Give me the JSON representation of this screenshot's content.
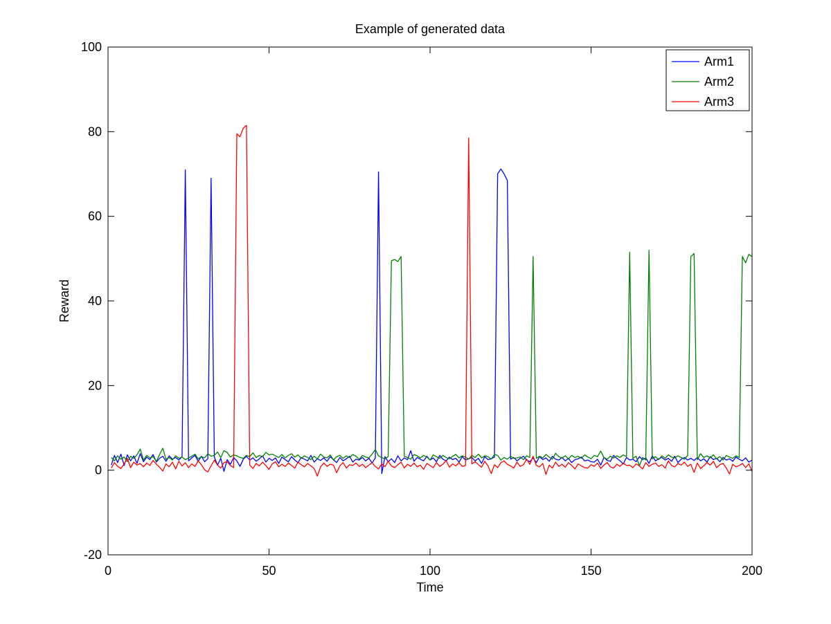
{
  "chart_data": {
    "type": "line",
    "title": "Example of generated data",
    "xlabel": "Time",
    "ylabel": "Reward",
    "xlim": [
      0,
      200
    ],
    "ylim": [
      -20,
      100
    ],
    "xticks": [
      0,
      50,
      100,
      150,
      200
    ],
    "yticks": [
      -20,
      0,
      20,
      40,
      60,
      80,
      100
    ],
    "grid": false,
    "legend_position": "top-right",
    "series": [
      {
        "name": "Arm1",
        "color": "#0000ff",
        "x": [
          1,
          2,
          3,
          4,
          5,
          6,
          7,
          8,
          9,
          10,
          11,
          12,
          13,
          14,
          15,
          16,
          17,
          18,
          19,
          20,
          21,
          22,
          23,
          24,
          25,
          26,
          27,
          28,
          29,
          30,
          31,
          32,
          33,
          34,
          35,
          36,
          37,
          38,
          39,
          40,
          41,
          42,
          43,
          44,
          45,
          46,
          47,
          48,
          49,
          50,
          51,
          52,
          53,
          54,
          55,
          56,
          57,
          58,
          59,
          60,
          61,
          62,
          63,
          64,
          65,
          66,
          67,
          68,
          69,
          70,
          71,
          72,
          73,
          74,
          75,
          76,
          77,
          78,
          79,
          80,
          81,
          82,
          83,
          84,
          85,
          86,
          87,
          88,
          89,
          90,
          91,
          92,
          93,
          94,
          95,
          96,
          97,
          98,
          99,
          100,
          101,
          102,
          103,
          104,
          105,
          106,
          107,
          108,
          109,
          110,
          111,
          112,
          113,
          114,
          115,
          116,
          117,
          118,
          119,
          120,
          121,
          122,
          123,
          124,
          125,
          126,
          127,
          128,
          129,
          130,
          131,
          132,
          133,
          134,
          135,
          136,
          137,
          138,
          139,
          140,
          141,
          142,
          143,
          144,
          145,
          146,
          147,
          148,
          149,
          150,
          151,
          152,
          153,
          154,
          155,
          156,
          157,
          158,
          159,
          160,
          161,
          162,
          163,
          164,
          165,
          166,
          167,
          168,
          169,
          170,
          171,
          172,
          173,
          174,
          175,
          176,
          177,
          178,
          179,
          180,
          181,
          182,
          183,
          184,
          185,
          186,
          187,
          188,
          189,
          190,
          191,
          192,
          193,
          194,
          195,
          196,
          197,
          198,
          199,
          200
        ],
        "y": [
          1.2,
          3.5,
          1.8,
          3.8,
          1.1,
          3.6,
          2.2,
          3.4,
          1.6,
          3.9,
          2.0,
          3.1,
          2.5,
          3.7,
          1.9,
          2.8,
          3.3,
          2.1,
          3.4,
          2.6,
          3.0,
          2.4,
          3.2,
          71.0,
          2.2,
          2.9,
          3.5,
          2.1,
          3.3,
          2.0,
          2.7,
          69.0,
          3.1,
          1.2,
          2.8,
          -0.3,
          2.5,
          1.4,
          3.0,
          2.2,
          0.9,
          2.6,
          3.3,
          2.4,
          2.9,
          2.1,
          2.7,
          3.4,
          1.9,
          2.8,
          2.3,
          2.9,
          1.6,
          3.1,
          2.5,
          2.0,
          3.2,
          2.4,
          1.8,
          3.0,
          2.6,
          2.2,
          3.5,
          1.9,
          2.7,
          2.3,
          2.9,
          2.1,
          3.2,
          2.5,
          1.8,
          3.0,
          2.2,
          2.7,
          3.3,
          1.9,
          2.6,
          2.4,
          3.0,
          2.2,
          2.8,
          1.7,
          2.9,
          70.5,
          -0.8,
          3.2,
          2.0,
          2.7,
          1.8,
          3.4,
          2.2,
          2.9,
          2.5,
          4.6,
          2.1,
          3.0,
          2.6,
          2.2,
          3.3,
          2.4,
          2.9,
          2.0,
          3.5,
          2.6,
          2.2,
          3.1,
          2.5,
          2.8,
          1.9,
          3.2,
          2.4,
          2.7,
          3.0,
          2.2,
          2.8,
          1.6,
          3.2,
          2.5,
          2.7,
          3.1,
          70.0,
          71.2,
          70.0,
          68.5,
          2.6,
          3.0,
          2.2,
          2.8,
          3.3,
          2.4,
          2.0,
          2.9,
          1.8,
          3.2,
          2.5,
          2.9,
          2.1,
          3.3,
          2.6,
          2.4,
          3.0,
          2.2,
          2.8,
          1.8,
          2.5,
          2.7,
          3.1,
          2.2,
          2.4,
          2.0,
          1.9,
          2.6,
          1.2,
          3.0,
          2.3,
          2.1,
          3.5,
          2.8,
          2.2,
          1.5,
          3.0,
          2.4,
          2.6,
          2.0,
          3.2,
          2.5,
          2.9,
          1.6,
          3.4,
          2.2,
          2.7,
          3.0,
          2.4,
          2.8,
          2.1,
          3.3,
          1.8,
          2.6,
          3.0,
          2.4,
          2.8,
          2.3,
          3.0,
          2.2,
          2.7,
          1.9,
          3.2,
          2.5,
          2.8,
          2.0,
          3.0,
          2.4,
          2.7,
          2.1,
          3.1,
          2.6,
          2.2,
          2.9,
          1.9,
          2.4
        ]
      },
      {
        "name": "Arm2",
        "color": "#007f00",
        "x": [
          1,
          2,
          3,
          4,
          5,
          6,
          7,
          8,
          9,
          10,
          11,
          12,
          13,
          14,
          15,
          16,
          17,
          18,
          19,
          20,
          21,
          22,
          23,
          24,
          25,
          26,
          27,
          28,
          29,
          30,
          31,
          32,
          33,
          34,
          35,
          36,
          37,
          38,
          39,
          40,
          41,
          42,
          43,
          44,
          45,
          46,
          47,
          48,
          49,
          50,
          51,
          52,
          53,
          54,
          55,
          56,
          57,
          58,
          59,
          60,
          61,
          62,
          63,
          64,
          65,
          66,
          67,
          68,
          69,
          70,
          71,
          72,
          73,
          74,
          75,
          76,
          77,
          78,
          79,
          80,
          81,
          82,
          83,
          84,
          85,
          86,
          87,
          88,
          89,
          90,
          91,
          92,
          93,
          94,
          95,
          96,
          97,
          98,
          99,
          100,
          101,
          102,
          103,
          104,
          105,
          106,
          107,
          108,
          109,
          110,
          111,
          112,
          113,
          114,
          115,
          116,
          117,
          118,
          119,
          120,
          121,
          122,
          123,
          124,
          125,
          126,
          127,
          128,
          129,
          130,
          131,
          132,
          133,
          134,
          135,
          136,
          137,
          138,
          139,
          140,
          141,
          142,
          143,
          144,
          145,
          146,
          147,
          148,
          149,
          150,
          151,
          152,
          153,
          154,
          155,
          156,
          157,
          158,
          159,
          160,
          161,
          162,
          163,
          164,
          165,
          166,
          167,
          168,
          169,
          170,
          171,
          172,
          173,
          174,
          175,
          176,
          177,
          178,
          179,
          180,
          181,
          182,
          183,
          184,
          185,
          186,
          187,
          188,
          189,
          190,
          191,
          192,
          193,
          194,
          195,
          196,
          197,
          198,
          199,
          200
        ],
        "y": [
          3.0,
          2.2,
          3.4,
          2.6,
          3.1,
          2.0,
          3.3,
          2.8,
          3.6,
          5.0,
          2.4,
          3.5,
          2.9,
          3.2,
          2.1,
          3.7,
          5.2,
          2.6,
          3.0,
          2.4,
          3.4,
          2.8,
          3.1,
          2.5,
          2.9,
          3.3,
          3.8,
          2.7,
          3.2,
          2.9,
          3.9,
          3.3,
          3.5,
          4.3,
          3.0,
          4.6,
          4.2,
          3.1,
          3.6,
          3.4,
          3.0,
          2.8,
          3.5,
          3.2,
          4.1,
          3.0,
          3.5,
          3.2,
          4.2,
          3.6,
          3.8,
          3.4,
          3.0,
          3.7,
          2.9,
          3.5,
          3.9,
          3.1,
          3.6,
          2.8,
          3.4,
          3.0,
          2.5,
          3.3,
          2.7,
          3.8,
          3.1,
          2.9,
          3.6,
          2.4,
          3.2,
          3.5,
          2.8,
          3.4,
          3.0,
          3.7,
          3.3,
          2.6,
          3.5,
          3.1,
          2.9,
          3.8,
          4.9,
          3.4,
          3.0,
          2.7,
          3.2,
          49.5,
          49.8,
          49.3,
          50.5,
          3.3,
          3.0,
          2.6,
          3.7,
          3.4,
          2.9,
          3.5,
          3.1,
          2.4,
          3.6,
          3.2,
          2.8,
          3.5,
          3.0,
          2.7,
          3.3,
          3.7,
          2.9,
          3.4,
          3.1,
          2.6,
          3.5,
          3.0,
          3.8,
          2.9,
          3.4,
          3.2,
          2.6,
          3.7,
          3.5,
          2.4,
          3.0,
          2.6,
          3.3,
          2.8,
          2.9,
          3.1,
          2.5,
          3.4,
          3.0,
          50.5,
          2.8,
          3.3,
          2.9,
          3.7,
          3.1,
          2.6,
          4.0,
          3.2,
          2.9,
          3.4,
          2.7,
          3.5,
          3.0,
          3.3,
          2.8,
          3.6,
          3.1,
          2.7,
          3.5,
          3.2,
          4.5,
          3.0,
          2.6,
          3.3,
          2.9,
          3.4,
          3.0,
          3.6,
          3.2,
          51.5,
          2.8,
          3.3,
          1.0,
          3.0,
          2.4,
          52.0,
          2.7,
          3.2,
          2.5,
          3.4,
          2.8,
          3.6,
          3.1,
          2.9,
          3.4,
          3.0,
          2.6,
          3.5,
          50.5,
          51.2,
          2.5,
          3.9,
          3.0,
          3.4,
          2.9,
          3.6,
          2.7,
          3.2,
          2.4,
          3.5,
          3.1,
          2.8,
          3.4,
          3.0,
          50.5,
          49.0,
          51.0,
          50.5
        ]
      },
      {
        "name": "Arm3",
        "color": "#ff0000",
        "x": [
          1,
          2,
          3,
          4,
          5,
          6,
          7,
          8,
          9,
          10,
          11,
          12,
          13,
          14,
          15,
          16,
          17,
          18,
          19,
          20,
          21,
          22,
          23,
          24,
          25,
          26,
          27,
          28,
          29,
          30,
          31,
          32,
          33,
          34,
          35,
          36,
          37,
          38,
          39,
          40,
          41,
          42,
          43,
          44,
          45,
          46,
          47,
          48,
          49,
          50,
          51,
          52,
          53,
          54,
          55,
          56,
          57,
          58,
          59,
          60,
          61,
          62,
          63,
          64,
          65,
          66,
          67,
          68,
          69,
          70,
          71,
          72,
          73,
          74,
          75,
          76,
          77,
          78,
          79,
          80,
          81,
          82,
          83,
          84,
          85,
          86,
          87,
          88,
          89,
          90,
          91,
          92,
          93,
          94,
          95,
          96,
          97,
          98,
          99,
          100,
          101,
          102,
          103,
          104,
          105,
          106,
          107,
          108,
          109,
          110,
          111,
          112,
          113,
          114,
          115,
          116,
          117,
          118,
          119,
          120,
          121,
          122,
          123,
          124,
          125,
          126,
          127,
          128,
          129,
          130,
          131,
          132,
          133,
          134,
          135,
          136,
          137,
          138,
          139,
          140,
          141,
          142,
          143,
          144,
          145,
          146,
          147,
          148,
          149,
          150,
          151,
          152,
          153,
          154,
          155,
          156,
          157,
          158,
          159,
          160,
          161,
          162,
          163,
          164,
          165,
          166,
          167,
          168,
          169,
          170,
          171,
          172,
          173,
          174,
          175,
          176,
          177,
          178,
          179,
          180,
          181,
          182,
          183,
          184,
          185,
          186,
          187,
          188,
          189,
          190,
          191,
          192,
          193,
          194,
          195,
          196,
          197,
          198,
          199,
          200
        ],
        "y": [
          0.5,
          1.8,
          0.9,
          0.4,
          1.5,
          2.8,
          0.6,
          1.9,
          1.2,
          1.6,
          0.8,
          1.7,
          1.1,
          2.3,
          1.4,
          0.7,
          -0.2,
          1.5,
          0.8,
          1.9,
          0.3,
          2.1,
          1.0,
          1.8,
          0.6,
          1.5,
          0.9,
          2.2,
          1.3,
          0.1,
          -0.4,
          1.0,
          2.4,
          1.2,
          0.5,
          1.8,
          2.0,
          1.1,
          0.6,
          79.5,
          78.8,
          80.8,
          81.5,
          1.2,
          0.4,
          1.6,
          1.0,
          1.9,
          1.1,
          0.2,
          1.5,
          2.0,
          0.8,
          1.4,
          0.9,
          1.7,
          1.1,
          0.5,
          1.9,
          1.3,
          0.8,
          1.6,
          1.0,
          0.4,
          -1.4,
          0.8,
          1.7,
          0.9,
          1.4,
          1.2,
          -0.6,
          1.0,
          1.8,
          0.5,
          1.3,
          1.1,
          1.7,
          0.9,
          1.4,
          0.6,
          1.2,
          1.8,
          0.9,
          0.3,
          1.5,
          0.8,
          2.1,
          1.0,
          0.6,
          1.3,
          1.9,
          0.5,
          1.4,
          0.9,
          1.7,
          0.8,
          1.2,
          0.2,
          1.6,
          1.1,
          0.6,
          1.8,
          0.9,
          1.4,
          2.3,
          0.7,
          1.5,
          1.0,
          1.8,
          0.9,
          1.1,
          78.5,
          1.5,
          2.0,
          1.3,
          0.7,
          2.1,
          1.0,
          -0.8,
          1.3,
          0.6,
          1.8,
          2.2,
          1.4,
          1.0,
          0.5,
          1.9,
          0.9,
          1.3,
          2.6,
          1.4,
          3.3,
          1.1,
          0.8,
          1.6,
          -1.0,
          1.2,
          0.5,
          1.9,
          0.9,
          1.4,
          0.7,
          1.8,
          1.1,
          0.3,
          1.5,
          1.0,
          0.6,
          0.5,
          1.3,
          0.9,
          1.7,
          0.4,
          1.2,
          1.8,
          0.8,
          0.5,
          1.4,
          0.9,
          1.7,
          1.1,
          1.2,
          0.6,
          1.5,
          1.0,
          0.3,
          1.8,
          0.9,
          1.4,
          1.7,
          0.9,
          1.3,
          0.5,
          2.2,
          1.1,
          0.8,
          1.6,
          1.2,
          1.9,
          0.9,
          1.4,
          -0.5,
          1.7,
          0.4,
          1.0,
          1.8,
          1.2,
          2.1,
          0.6,
          1.3,
          1.6,
          0.5,
          -0.9,
          1.4,
          0.8,
          1.1,
          1.6,
          0.6,
          1.5,
          -0.3
        ]
      }
    ]
  }
}
